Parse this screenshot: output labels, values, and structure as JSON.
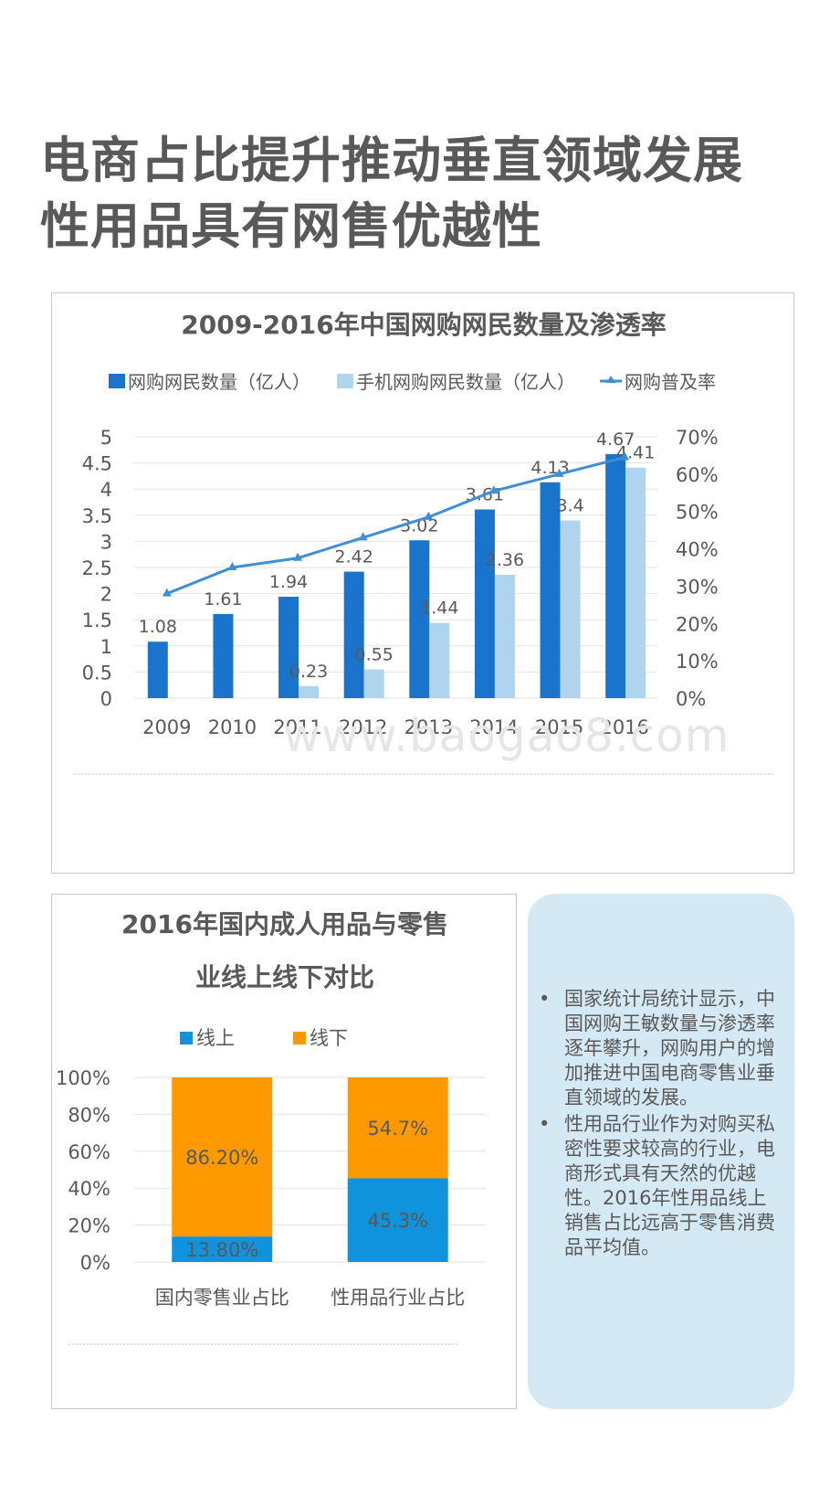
{
  "title_lines": [
    "电商占比提升推动垂直领域发展",
    "性用品具有网售优越性"
  ],
  "watermark": "www.baogao8.com",
  "colors": {
    "dark_blue": "#1a74cc",
    "light_blue": "#aed4ee",
    "line": "#3d8fd6",
    "online": "#0f93dd",
    "offline": "#ff9900"
  },
  "chart_data": [
    {
      "type": "bar",
      "title": "2009-2016年中国网购网民数量及渗透率",
      "categories": [
        "2009",
        "2010",
        "2011",
        "2012",
        "2013",
        "2014",
        "2015",
        "2016"
      ],
      "series": [
        {
          "name": "网购网民数量（亿人）",
          "kind": "bar",
          "axis": "left",
          "color": "#1a74cc",
          "values": [
            1.08,
            1.61,
            1.94,
            2.42,
            3.02,
            3.61,
            4.13,
            4.67
          ],
          "labels": [
            "1.08",
            "1.61",
            "1.94",
            "2.42",
            "3.02",
            "3.61",
            "4.13",
            "4.67"
          ]
        },
        {
          "name": "手机网购网民数量（亿人）",
          "kind": "bar",
          "axis": "left",
          "color": "#aed4ee",
          "values": [
            null,
            null,
            0.23,
            0.55,
            1.44,
            2.36,
            3.4,
            4.41
          ],
          "labels": [
            "",
            "",
            "0.23",
            "0.55",
            "1.44",
            "2.36",
            "3.4",
            "4.41"
          ]
        },
        {
          "name": "网购普及率",
          "kind": "line",
          "axis": "right",
          "color": "#3d8fd6",
          "values": [
            28,
            35,
            37.5,
            43,
            48.5,
            55.5,
            60,
            64.5
          ]
        }
      ],
      "left_axis": {
        "ylim": [
          0,
          5
        ],
        "ticks": [
          "0",
          "0.5",
          "1",
          "1.5",
          "2",
          "2.5",
          "3",
          "3.5",
          "4",
          "4.5",
          "5"
        ]
      },
      "right_axis": {
        "ylim": [
          0,
          70
        ],
        "ticks": [
          "0%",
          "10%",
          "20%",
          "30%",
          "40%",
          "50%",
          "60%",
          "70%"
        ]
      },
      "grid": true,
      "legend_position": "top"
    },
    {
      "type": "bar",
      "stacked": true,
      "title_lines": [
        "2016年国内成人用品与零售",
        "业线上线下对比"
      ],
      "categories": [
        "国内零售业占比",
        "性用品行业占比"
      ],
      "series": [
        {
          "name": "线上",
          "color": "#0f93dd",
          "values": [
            13.8,
            45.3
          ],
          "labels": [
            "13.80%",
            "45.3%"
          ]
        },
        {
          "name": "线下",
          "color": "#ff9900",
          "values": [
            86.2,
            54.7
          ],
          "labels": [
            "86.20%",
            "54.7%"
          ]
        }
      ],
      "y_axis": {
        "ylim": [
          0,
          100
        ],
        "ticks": [
          "0%",
          "20%",
          "40%",
          "60%",
          "80%",
          "100%"
        ]
      },
      "grid": true,
      "legend_position": "top"
    }
  ],
  "notes": [
    "国家统计局统计显示，中国网购王敏数量与渗透率逐年攀升，网购用户的增加推进中国电商零售业垂直领域的发展。",
    "性用品行业作为对购买私密性要求较高的行业，电商形式具有天然的优越性。2016年性用品线上销售占比远高于零售消费品平均值。"
  ],
  "bullet_char": "•"
}
